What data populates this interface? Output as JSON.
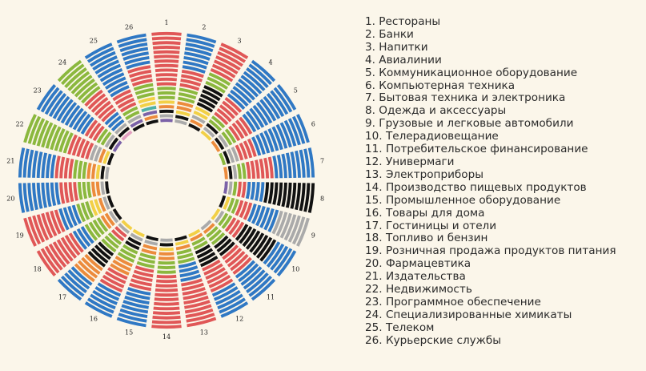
{
  "chart_data": {
    "type": "radial-bar",
    "title": "",
    "colors": {
      "blue": "#2f78c4",
      "red": "#e05757",
      "green": "#8bb83e",
      "orange": "#ec8b3c",
      "yellow": "#f2d046",
      "gray": "#aaaaaa",
      "black": "#111111",
      "purple": "#7b62a8",
      "pink": "#e3a0c0",
      "teal": "#4fb0a8"
    },
    "rings_per_sector": 20,
    "sectors": [
      {
        "label": "1",
        "segments": [
          {
            "color": "red",
            "count": 12
          },
          {
            "color": "green",
            "count": 3
          },
          {
            "color": "yellow",
            "count": 1
          },
          {
            "color": "orange",
            "count": 1
          },
          {
            "color": "black",
            "count": 1
          },
          {
            "color": "gray",
            "count": 1
          },
          {
            "color": "purple",
            "count": 1
          }
        ]
      },
      {
        "label": "2",
        "segments": [
          {
            "color": "blue",
            "count": 8
          },
          {
            "color": "red",
            "count": 4
          },
          {
            "color": "green",
            "count": 3
          },
          {
            "color": "orange",
            "count": 2
          },
          {
            "color": "yellow",
            "count": 1
          },
          {
            "color": "black",
            "count": 1
          },
          {
            "color": "gray",
            "count": 1
          }
        ]
      },
      {
        "label": "3",
        "segments": [
          {
            "color": "red",
            "count": 7
          },
          {
            "color": "green",
            "count": 3
          },
          {
            "color": "black",
            "count": 5
          },
          {
            "color": "yellow",
            "count": 2
          },
          {
            "color": "gray",
            "count": 1
          },
          {
            "color": "orange",
            "count": 1
          },
          {
            "color": "black",
            "count": 1
          }
        ]
      },
      {
        "label": "4",
        "segments": [
          {
            "color": "blue",
            "count": 10
          },
          {
            "color": "red",
            "count": 5
          },
          {
            "color": "green",
            "count": 2
          },
          {
            "color": "black",
            "count": 1
          },
          {
            "color": "gray",
            "count": 1
          },
          {
            "color": "yellow",
            "count": 1
          }
        ]
      },
      {
        "label": "5",
        "segments": [
          {
            "color": "blue",
            "count": 11
          },
          {
            "color": "red",
            "count": 4
          },
          {
            "color": "green",
            "count": 2
          },
          {
            "color": "gray",
            "count": 1
          },
          {
            "color": "black",
            "count": 1
          },
          {
            "color": "orange",
            "count": 1
          }
        ]
      },
      {
        "label": "6",
        "segments": [
          {
            "color": "blue",
            "count": 12
          },
          {
            "color": "red",
            "count": 4
          },
          {
            "color": "gray",
            "count": 2
          },
          {
            "color": "black",
            "count": 1
          },
          {
            "color": "green",
            "count": 1
          }
        ]
      },
      {
        "label": "7",
        "segments": [
          {
            "color": "blue",
            "count": 9
          },
          {
            "color": "red",
            "count": 6
          },
          {
            "color": "green",
            "count": 2
          },
          {
            "color": "gray",
            "count": 1
          },
          {
            "color": "black",
            "count": 1
          },
          {
            "color": "orange",
            "count": 1
          }
        ]
      },
      {
        "label": "8",
        "segments": [
          {
            "color": "black",
            "count": 11
          },
          {
            "color": "blue",
            "count": 4
          },
          {
            "color": "red",
            "count": 2
          },
          {
            "color": "green",
            "count": 1
          },
          {
            "color": "gray",
            "count": 1
          },
          {
            "color": "purple",
            "count": 1
          }
        ]
      },
      {
        "label": "9",
        "segments": [
          {
            "color": "gray",
            "count": 7
          },
          {
            "color": "blue",
            "count": 6
          },
          {
            "color": "red",
            "count": 3
          },
          {
            "color": "green",
            "count": 2
          },
          {
            "color": "yellow",
            "count": 1
          },
          {
            "color": "black",
            "count": 1
          }
        ]
      },
      {
        "label": "10",
        "segments": [
          {
            "color": "blue",
            "count": 5
          },
          {
            "color": "black",
            "count": 8
          },
          {
            "color": "red",
            "count": 3
          },
          {
            "color": "green",
            "count": 2
          },
          {
            "color": "gray",
            "count": 1
          },
          {
            "color": "yellow",
            "count": 1
          }
        ]
      },
      {
        "label": "11",
        "segments": [
          {
            "color": "blue",
            "count": 7
          },
          {
            "color": "red",
            "count": 5
          },
          {
            "color": "black",
            "count": 3
          },
          {
            "color": "green",
            "count": 3
          },
          {
            "color": "orange",
            "count": 1
          },
          {
            "color": "gray",
            "count": 1
          }
        ]
      },
      {
        "label": "12",
        "segments": [
          {
            "color": "blue",
            "count": 6
          },
          {
            "color": "red",
            "count": 6
          },
          {
            "color": "black",
            "count": 4
          },
          {
            "color": "green",
            "count": 2
          },
          {
            "color": "orange",
            "count": 1
          },
          {
            "color": "yellow",
            "count": 1
          }
        ]
      },
      {
        "label": "13",
        "segments": [
          {
            "color": "red",
            "count": 10
          },
          {
            "color": "blue",
            "count": 4
          },
          {
            "color": "green",
            "count": 3
          },
          {
            "color": "orange",
            "count": 1
          },
          {
            "color": "yellow",
            "count": 1
          },
          {
            "color": "black",
            "count": 1
          }
        ]
      },
      {
        "label": "14",
        "segments": [
          {
            "color": "red",
            "count": 12
          },
          {
            "color": "green",
            "count": 3
          },
          {
            "color": "orange",
            "count": 2
          },
          {
            "color": "yellow",
            "count": 1
          },
          {
            "color": "black",
            "count": 1
          },
          {
            "color": "gray",
            "count": 1
          }
        ]
      },
      {
        "label": "15",
        "segments": [
          {
            "color": "blue",
            "count": 8
          },
          {
            "color": "red",
            "count": 5
          },
          {
            "color": "green",
            "count": 3
          },
          {
            "color": "orange",
            "count": 2
          },
          {
            "color": "gray",
            "count": 1
          },
          {
            "color": "black",
            "count": 1
          }
        ]
      },
      {
        "label": "16",
        "segments": [
          {
            "color": "blue",
            "count": 6
          },
          {
            "color": "red",
            "count": 4
          },
          {
            "color": "orange",
            "count": 3
          },
          {
            "color": "green",
            "count": 3
          },
          {
            "color": "black",
            "count": 2
          },
          {
            "color": "gray",
            "count": 1
          },
          {
            "color": "yellow",
            "count": 1
          }
        ]
      },
      {
        "label": "17",
        "segments": [
          {
            "color": "blue",
            "count": 5
          },
          {
            "color": "orange",
            "count": 4
          },
          {
            "color": "black",
            "count": 4
          },
          {
            "color": "green",
            "count": 3
          },
          {
            "color": "red",
            "count": 2
          },
          {
            "color": "gray",
            "count": 1
          },
          {
            "color": "yellow",
            "count": 1
          }
        ]
      },
      {
        "label": "18",
        "segments": [
          {
            "color": "red",
            "count": 9
          },
          {
            "color": "blue",
            "count": 3
          },
          {
            "color": "green",
            "count": 4
          },
          {
            "color": "orange",
            "count": 2
          },
          {
            "color": "gray",
            "count": 1
          },
          {
            "color": "black",
            "count": 1
          }
        ]
      },
      {
        "label": "19",
        "segments": [
          {
            "color": "red",
            "count": 8
          },
          {
            "color": "blue",
            "count": 4
          },
          {
            "color": "green",
            "count": 3
          },
          {
            "color": "yellow",
            "count": 2
          },
          {
            "color": "orange",
            "count": 1
          },
          {
            "color": "gray",
            "count": 1
          },
          {
            "color": "black",
            "count": 1
          }
        ]
      },
      {
        "label": "20",
        "segments": [
          {
            "color": "blue",
            "count": 9
          },
          {
            "color": "red",
            "count": 4
          },
          {
            "color": "green",
            "count": 3
          },
          {
            "color": "orange",
            "count": 2
          },
          {
            "color": "gray",
            "count": 1
          },
          {
            "color": "black",
            "count": 1
          }
        ]
      },
      {
        "label": "21",
        "segments": [
          {
            "color": "blue",
            "count": 8
          },
          {
            "color": "red",
            "count": 4
          },
          {
            "color": "green",
            "count": 3
          },
          {
            "color": "orange",
            "count": 2
          },
          {
            "color": "yellow",
            "count": 1
          },
          {
            "color": "black",
            "count": 1
          },
          {
            "color": "gray",
            "count": 1
          }
        ]
      },
      {
        "label": "22",
        "segments": [
          {
            "color": "green",
            "count": 10
          },
          {
            "color": "red",
            "count": 5
          },
          {
            "color": "gray",
            "count": 2
          },
          {
            "color": "orange",
            "count": 1
          },
          {
            "color": "yellow",
            "count": 1
          },
          {
            "color": "black",
            "count": 1
          }
        ]
      },
      {
        "label": "23",
        "segments": [
          {
            "color": "blue",
            "count": 12
          },
          {
            "color": "red",
            "count": 3
          },
          {
            "color": "green",
            "count": 2
          },
          {
            "color": "gray",
            "count": 1
          },
          {
            "color": "black",
            "count": 1
          },
          {
            "color": "purple",
            "count": 1
          }
        ]
      },
      {
        "label": "24",
        "segments": [
          {
            "color": "green",
            "count": 8
          },
          {
            "color": "red",
            "count": 6
          },
          {
            "color": "blue",
            "count": 3
          },
          {
            "color": "gray",
            "count": 1
          },
          {
            "color": "black",
            "count": 1
          },
          {
            "color": "pink",
            "count": 1
          }
        ]
      },
      {
        "label": "25",
        "segments": [
          {
            "color": "blue",
            "count": 11
          },
          {
            "color": "red",
            "count": 4
          },
          {
            "color": "green",
            "count": 2
          },
          {
            "color": "gray",
            "count": 1
          },
          {
            "color": "purple",
            "count": 1
          },
          {
            "color": "black",
            "count": 1
          }
        ]
      },
      {
        "label": "26",
        "segments": [
          {
            "color": "blue",
            "count": 7
          },
          {
            "color": "red",
            "count": 4
          },
          {
            "color": "green",
            "count": 3
          },
          {
            "color": "yellow",
            "count": 2
          },
          {
            "color": "teal",
            "count": 1
          },
          {
            "color": "purple",
            "count": 1
          },
          {
            "color": "orange",
            "count": 1
          },
          {
            "color": "black",
            "count": 1
          }
        ]
      }
    ],
    "legend": [
      "1. Рестораны",
      "2. Банки",
      "3. Напитки",
      "4. Авиалинии",
      "5. Коммуникационное оборудование",
      "6. Компьютерная техника",
      "7. Бытовая техника и электроника",
      "8. Одежда и аксессуары",
      "9. Грузовые и легковые автомобили",
      "10. Телерадиовещание",
      "11. Потребительское финансирование",
      "12. Универмаги",
      "13. Электроприборы",
      "14. Производство пищевых продуктов",
      "15. Промышленное оборудование",
      "16. Товары для дома",
      "17. Гостиницы и отели",
      "18. Топливо и бензин",
      "19. Розничная продажа продуктов питания",
      "20. Фармацевтика",
      "21. Издательства",
      "22. Недвижимость",
      "23. Программное обеспечение",
      "24. Специализированные химикаты",
      "25. Телеком",
      "26. Курьерские службы"
    ]
  }
}
